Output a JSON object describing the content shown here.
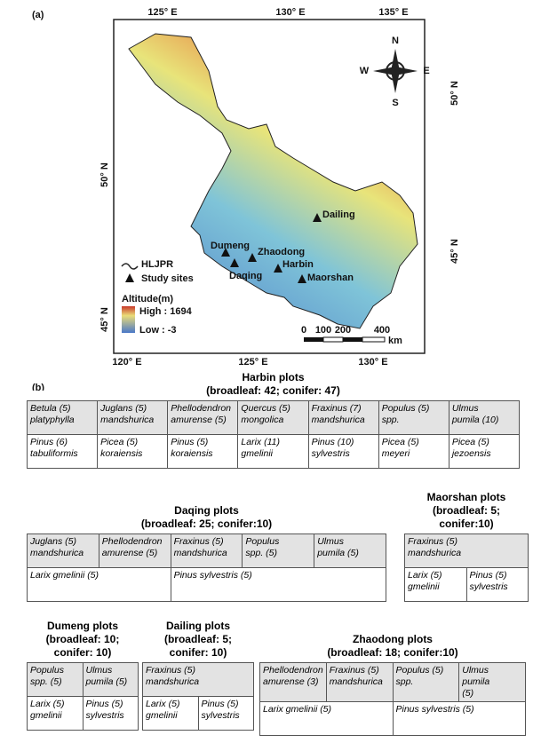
{
  "panel_a": {
    "label": "(a)",
    "top_axis": [
      "125° E",
      "130° E",
      "135° E"
    ],
    "bottom_axis": [
      "120° E",
      "125° E",
      "130° E"
    ],
    "left_axis": [
      "50° N",
      "45° N"
    ],
    "right_axis": [
      "50° N",
      "45° N"
    ],
    "compass": [
      "N",
      "E",
      "S",
      "W"
    ],
    "sites": [
      "Dailing",
      "Dumeng",
      "Zhaodong",
      "Daqing",
      "Harbin",
      "Maorshan"
    ],
    "legend": {
      "boundary": "HLJPR",
      "sites": "Study sites",
      "altitude": "Altitude(m)",
      "high": "High : 1694",
      "low": "Low : -3"
    },
    "scale": {
      "ticks": [
        "0",
        "100",
        "200",
        "400"
      ],
      "unit": "km"
    }
  },
  "panel_b": {
    "label": "(b)",
    "tables": [
      {
        "title": [
          "Harbin plots",
          "(broadleaf: 42; conifer: 47)"
        ],
        "rows": [
          [
            [
              "Betula (5)",
              "platyphylla"
            ],
            [
              "Juglans (5)",
              "mandshurica"
            ],
            [
              "Phellodendron",
              "amurense (5)"
            ],
            [
              "Quercus (5)",
              "mongolica"
            ],
            [
              "Fraxinus (7)",
              "mandshurica"
            ],
            [
              "Populus (5)",
              "spp."
            ],
            [
              "Ulmus",
              "pumila (10)"
            ]
          ],
          [
            [
              "Pinus (6)",
              "tabuliformis"
            ],
            [
              "Picea (5)",
              "koraiensis"
            ],
            [
              "Pinus (5)",
              "koraiensis"
            ],
            [
              "Larix (11)",
              "gmelinii"
            ],
            [
              "Pinus (10)",
              "sylvestris"
            ],
            [
              "Picea (5)",
              "meyeri"
            ],
            [
              "Picea (5)",
              "jezoensis"
            ]
          ]
        ]
      },
      {
        "title": [
          "Daqing plots",
          "(broadleaf: 25; conifer:10)"
        ],
        "rows": [
          [
            [
              "Juglans (5)",
              "mandshurica"
            ],
            [
              "Phellodendron",
              "amurense (5)"
            ],
            [
              "Fraxinus (5)",
              "mandshurica"
            ],
            [
              "Populus",
              "spp. (5)"
            ],
            [
              "Ulmus",
              "pumila (5)"
            ]
          ],
          [
            [
              "Larix gmelinii (5)"
            ],
            [
              "Pinus sylvestris (5)"
            ]
          ]
        ]
      },
      {
        "title": [
          "Maorshan plots",
          "(broadleaf: 5;",
          "conifer:10)"
        ],
        "rows": [
          [
            [
              "Fraxinus (5)",
              "mandshurica"
            ]
          ],
          [
            [
              "Larix (5)",
              "gmelinii"
            ],
            [
              "Pinus (5)",
              "sylvestris"
            ]
          ]
        ]
      },
      {
        "title": [
          "Dumeng plots",
          "(broadleaf: 10;",
          "conifer: 10)"
        ],
        "rows": [
          [
            [
              "Populus",
              "spp. (5)"
            ],
            [
              "Ulmus",
              "pumila (5)"
            ]
          ],
          [
            [
              "Larix (5)",
              "gmelinii"
            ],
            [
              "Pinus (5)",
              "sylvestris"
            ]
          ]
        ]
      },
      {
        "title": [
          "Dailing plots",
          "(broadleaf: 5;",
          "conifer: 10)"
        ],
        "rows": [
          [
            [
              "Fraxinus (5)",
              "mandshurica"
            ]
          ],
          [
            [
              "Larix (5)",
              "gmelinii"
            ],
            [
              "Pinus (5)",
              "sylvestris"
            ]
          ]
        ]
      },
      {
        "title": [
          "Zhaodong plots",
          "(broadleaf: 18; conifer:10)"
        ],
        "rows": [
          [
            [
              "Phellodendron",
              "amurense (3)"
            ],
            [
              "Fraxinus (5)",
              "mandshurica"
            ],
            [
              "Populus (5)",
              "spp."
            ],
            [
              "Ulmus",
              "pumila",
              "(5)"
            ]
          ],
          [
            [
              "Larix gmelinii (5)"
            ],
            [
              "Pinus sylvestris (5)"
            ]
          ]
        ]
      }
    ]
  }
}
